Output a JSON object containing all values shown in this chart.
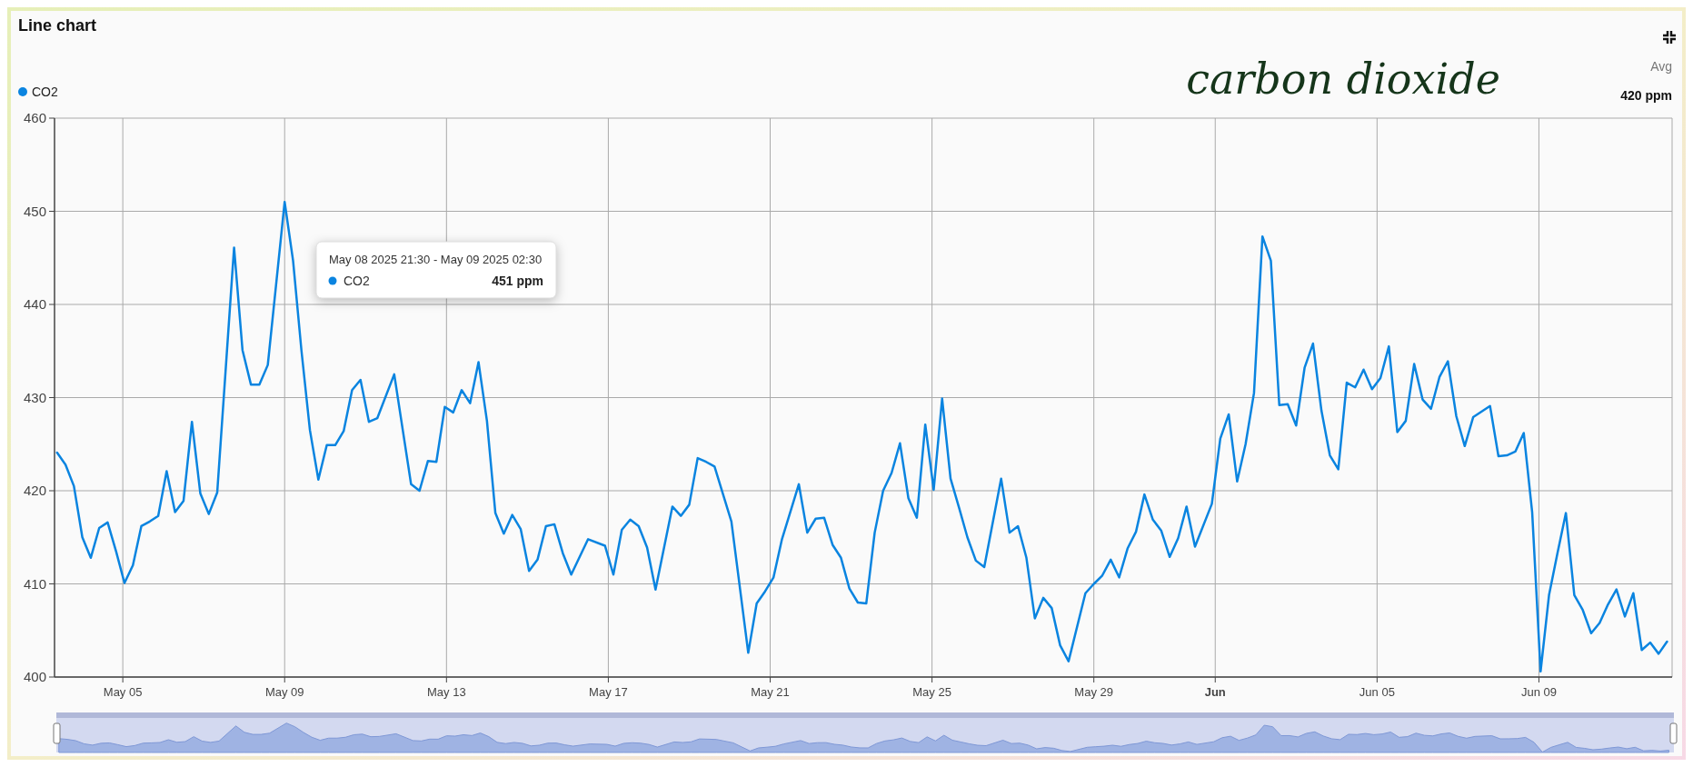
{
  "chart_data": {
    "type": "line",
    "title": "Line chart",
    "legend": "top left",
    "marker": "none",
    "grid": true,
    "annotations": [
      "carbon dioxide",
      "Avg",
      "420 ppm",
      "May 08 2025 21:30 - May 09 2025 02:30",
      "451 ppm"
    ],
    "xlim": [
      "2025-05-03T07:30",
      "2025-06-12T07:00"
    ],
    "xticks": [
      {
        "value": "2025-05-05",
        "label": "May 05"
      },
      {
        "value": "2025-05-09",
        "label": "May 09"
      },
      {
        "value": "2025-05-13",
        "label": "May 13"
      },
      {
        "value": "2025-05-17",
        "label": "May 17"
      },
      {
        "value": "2025-05-21",
        "label": "May 21"
      },
      {
        "value": "2025-05-25",
        "label": "May 25"
      },
      {
        "value": "2025-05-29",
        "label": "May 29"
      },
      {
        "value": "2025-06-01",
        "label": "Jun"
      },
      {
        "value": "2025-06-05",
        "label": "Jun 05"
      },
      {
        "value": "2025-06-09",
        "label": "Jun 09"
      }
    ],
    "ylim": [
      400,
      460
    ],
    "yticks": [
      400,
      410,
      420,
      430,
      440,
      450,
      460
    ],
    "series": [
      {
        "name": "CO2",
        "color": "#0a84e0",
        "x": [
          "2025-05-03T09:00",
          "2025-05-03T14:00",
          "2025-05-03T19:00",
          "2025-05-04T00:00",
          "2025-05-04T05:00",
          "2025-05-04T10:00",
          "2025-05-04T15:00",
          "2025-05-04T20:00",
          "2025-05-05T01:00",
          "2025-05-05T06:00",
          "2025-05-05T11:00",
          "2025-05-05T16:00",
          "2025-05-05T21:00",
          "2025-05-06T02:00",
          "2025-05-06T07:00",
          "2025-05-06T12:00",
          "2025-05-06T17:00",
          "2025-05-06T22:00",
          "2025-05-07T03:00",
          "2025-05-07T08:00",
          "2025-05-07T18:00",
          "2025-05-07T23:00",
          "2025-05-08T04:00",
          "2025-05-08T09:00",
          "2025-05-08T14:00",
          "2025-05-09T00:00",
          "2025-05-09T05:00",
          "2025-05-09T10:00",
          "2025-05-09T15:00",
          "2025-05-09T20:00",
          "2025-05-10T01:00",
          "2025-05-10T06:00",
          "2025-05-10T11:00",
          "2025-05-10T16:00",
          "2025-05-10T21:00",
          "2025-05-11T02:00",
          "2025-05-11T07:00",
          "2025-05-11T17:00",
          "2025-05-12T03:00",
          "2025-05-12T08:00",
          "2025-05-12T13:00",
          "2025-05-12T18:00",
          "2025-05-12T23:00",
          "2025-05-13T04:00",
          "2025-05-13T09:00",
          "2025-05-13T14:00",
          "2025-05-13T19:00",
          "2025-05-14T00:00",
          "2025-05-14T05:00",
          "2025-05-14T10:00",
          "2025-05-14T15:00",
          "2025-05-14T20:00",
          "2025-05-15T01:00",
          "2025-05-15T06:00",
          "2025-05-15T11:00",
          "2025-05-15T16:00",
          "2025-05-15T21:00",
          "2025-05-16T02:00",
          "2025-05-16T12:00",
          "2025-05-16T22:00",
          "2025-05-17T03:00",
          "2025-05-17T08:00",
          "2025-05-17T13:00",
          "2025-05-17T18:00",
          "2025-05-17T23:00",
          "2025-05-18T04:00",
          "2025-05-18T14:00",
          "2025-05-18T19:00",
          "2025-05-19T00:00",
          "2025-05-19T05:00",
          "2025-05-19T10:00",
          "2025-05-19T15:00",
          "2025-05-20T01:00",
          "2025-05-20T11:00",
          "2025-05-20T16:00",
          "2025-05-20T21:00",
          "2025-05-21T02:00",
          "2025-05-21T07:00",
          "2025-05-21T17:00",
          "2025-05-21T22:00",
          "2025-05-22T03:00",
          "2025-05-22T08:00",
          "2025-05-22T13:00",
          "2025-05-22T18:00",
          "2025-05-22T23:00",
          "2025-05-23T04:00",
          "2025-05-23T09:00",
          "2025-05-23T14:00",
          "2025-05-23T19:00",
          "2025-05-24T00:00",
          "2025-05-24T05:00",
          "2025-05-24T10:00",
          "2025-05-24T15:00",
          "2025-05-24T20:00",
          "2025-05-25T01:00",
          "2025-05-25T06:00",
          "2025-05-25T11:00",
          "2025-05-25T16:00",
          "2025-05-25T21:00",
          "2025-05-26T02:00",
          "2025-05-26T07:00",
          "2025-05-26T17:00",
          "2025-05-26T22:00",
          "2025-05-27T03:00",
          "2025-05-27T08:00",
          "2025-05-27T13:00",
          "2025-05-27T18:00",
          "2025-05-27T23:00",
          "2025-05-28T04:00",
          "2025-05-28T09:00",
          "2025-05-28T19:00",
          "2025-05-29T00:00",
          "2025-05-29T05:00",
          "2025-05-29T10:00",
          "2025-05-29T15:00",
          "2025-05-29T20:00",
          "2025-05-30T01:00",
          "2025-05-30T06:00",
          "2025-05-30T11:00",
          "2025-05-30T16:00",
          "2025-05-30T21:00",
          "2025-05-31T02:00",
          "2025-05-31T07:00",
          "2025-05-31T12:00",
          "2025-05-31T22:00",
          "2025-06-01T03:00",
          "2025-06-01T08:00",
          "2025-06-01T13:00",
          "2025-06-01T18:00",
          "2025-06-01T23:00",
          "2025-06-02T04:00",
          "2025-06-02T09:00",
          "2025-06-02T14:00",
          "2025-06-02T19:00",
          "2025-06-03T00:00",
          "2025-06-03T05:00",
          "2025-06-03T10:00",
          "2025-06-03T15:00",
          "2025-06-03T20:00",
          "2025-06-04T01:00",
          "2025-06-04T06:00",
          "2025-06-04T11:00",
          "2025-06-04T16:00",
          "2025-06-04T21:00",
          "2025-06-05T02:00",
          "2025-06-05T07:00",
          "2025-06-05T12:00",
          "2025-06-05T17:00",
          "2025-06-05T22:00",
          "2025-06-06T03:00",
          "2025-06-06T08:00",
          "2025-06-06T13:00",
          "2025-06-06T18:00",
          "2025-06-06T23:00",
          "2025-06-07T04:00",
          "2025-06-07T09:00",
          "2025-06-07T19:00",
          "2025-06-08T00:00",
          "2025-06-08T05:00",
          "2025-06-08T10:00",
          "2025-06-08T15:00",
          "2025-06-08T20:00",
          "2025-06-09T01:00",
          "2025-06-09T06:00",
          "2025-06-09T11:00",
          "2025-06-09T16:00",
          "2025-06-09T21:00",
          "2025-06-10T02:00",
          "2025-06-10T07:00",
          "2025-06-10T12:00",
          "2025-06-10T17:00",
          "2025-06-10T22:00",
          "2025-06-11T03:00",
          "2025-06-11T08:00",
          "2025-06-11T13:00",
          "2025-06-11T18:00",
          "2025-06-11T23:00",
          "2025-06-12T04:00"
        ],
        "values": [
          424.1,
          422.8,
          420.5,
          415.0,
          412.8,
          416.0,
          416.6,
          413.5,
          410.1,
          412.0,
          416.2,
          416.7,
          417.3,
          422.1,
          417.7,
          418.9,
          427.4,
          419.7,
          417.5,
          419.8,
          446.1,
          435.1,
          431.4,
          431.4,
          433.5,
          451,
          444.7,
          435.0,
          426.5,
          421.2,
          424.9,
          424.9,
          426.4,
          430.8,
          431.9,
          427.4,
          427.8,
          432.5,
          420.7,
          420.0,
          423.2,
          423.1,
          429.0,
          428.4,
          430.8,
          429.4,
          433.8,
          427.5,
          417.6,
          415.4,
          417.4,
          415.9,
          411.4,
          412.6,
          416.2,
          416.4,
          413.3,
          411.0,
          414.8,
          414.1,
          411.0,
          415.8,
          416.9,
          416.2,
          413.9,
          409.4,
          418.3,
          417.3,
          418.5,
          423.5,
          423.1,
          422.6,
          416.7,
          402.6,
          407.9,
          409.2,
          410.7,
          414.8,
          420.7,
          415.5,
          417.0,
          417.1,
          414.2,
          412.8,
          409.5,
          408.0,
          407.9,
          415.5,
          420.0,
          421.9,
          425.1,
          419.2,
          417.1,
          427.1,
          420.1,
          429.9,
          421.3,
          418.2,
          415.0,
          412.5,
          411.8,
          421.3,
          415.5,
          416.2,
          412.8,
          406.3,
          408.5,
          407.4,
          403.4,
          401.7,
          409.0,
          410.0,
          410.9,
          412.6,
          410.7,
          413.8,
          415.6,
          419.6,
          416.9,
          415.7,
          412.9,
          414.9,
          418.3,
          414.0,
          418.6,
          425.6,
          428.2,
          421.0,
          425.0,
          430.5,
          447.3,
          444.7,
          429.2,
          429.3,
          427.0,
          433.2,
          435.8,
          428.6,
          423.8,
          422.3,
          431.6,
          431.1,
          433.0,
          430.9,
          432.1,
          435.5,
          426.3,
          427.5,
          433.6,
          429.8,
          428.8,
          432.2,
          433.9,
          428.0,
          424.8,
          427.9,
          429.1,
          423.7,
          423.8,
          424.2,
          426.2,
          417.7,
          400.6,
          408.8,
          413.3,
          417.6,
          408.8,
          407.2,
          404.7,
          405.8,
          407.8,
          409.4,
          406.5,
          409.0,
          402.9,
          403.7,
          402.5,
          403.8
        ]
      }
    ]
  }
}
